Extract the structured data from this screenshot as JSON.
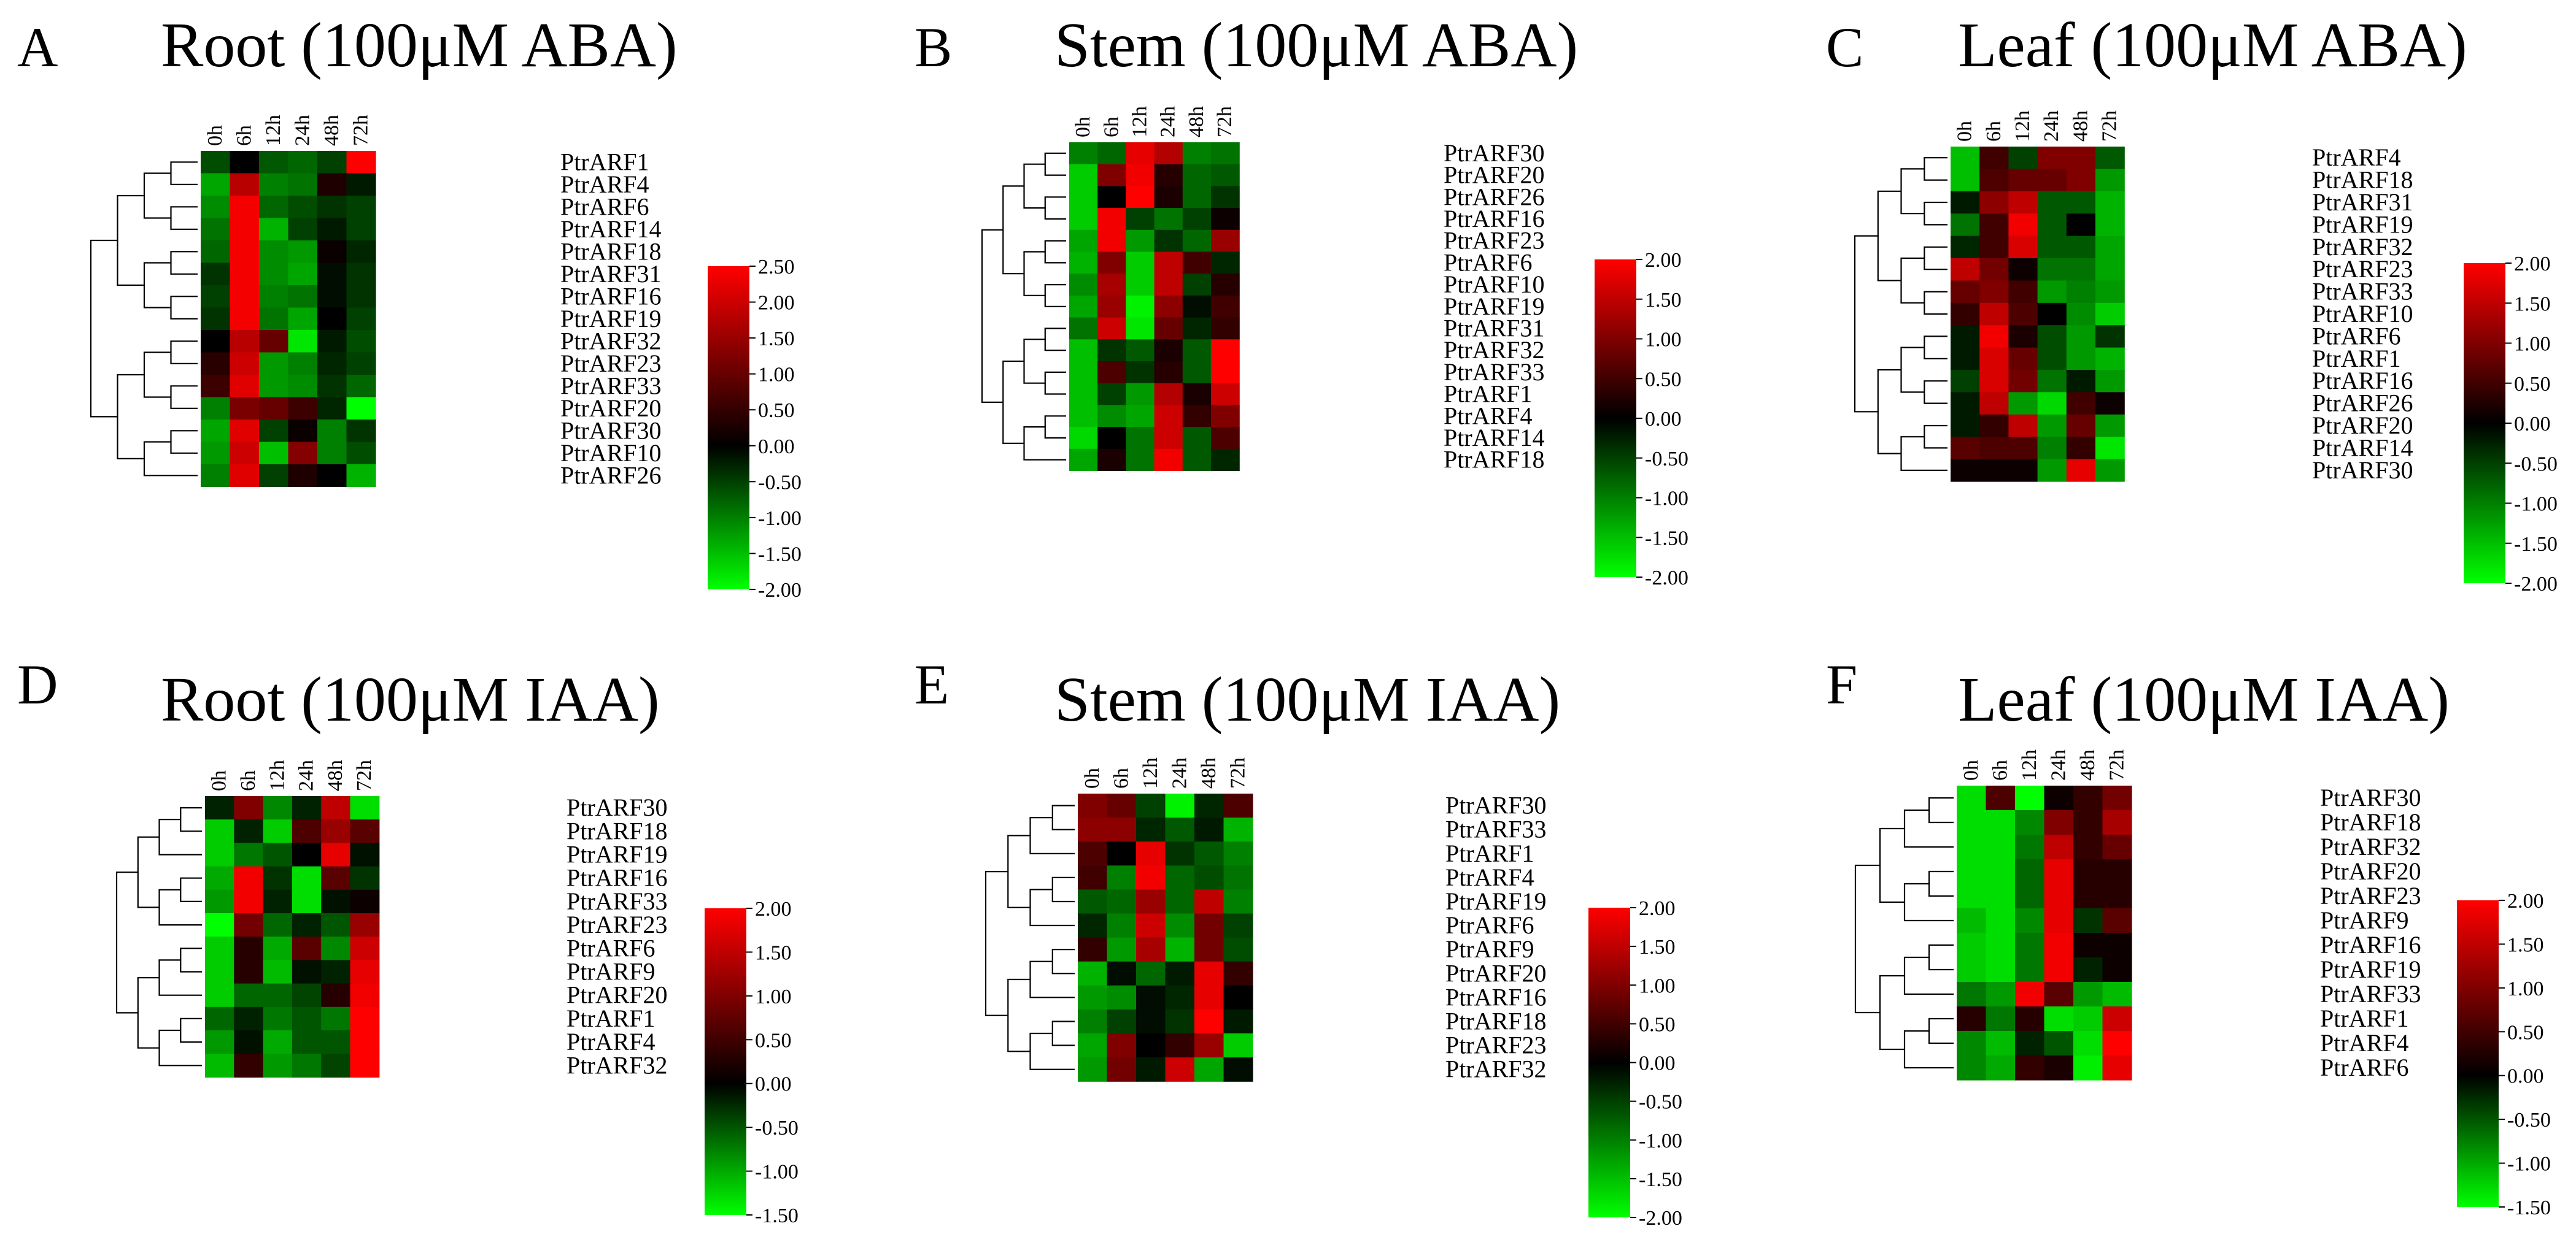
{
  "colors": {
    "low": "#00ff00",
    "mid": "#000000",
    "high": "#ff0000"
  },
  "chart_data": [
    {
      "type": "heatmap",
      "panel": "A",
      "title": "Root (100μM ABA)",
      "columns": [
        "0h",
        "6h",
        "12h",
        "24h",
        "48h",
        "72h"
      ],
      "rows": [
        "PtrARF1",
        "PtrARF4",
        "PtrARF6",
        "PtrARF14",
        "PtrARF18",
        "PtrARF31",
        "PtrARF16",
        "PtrARF19",
        "PtrARF32",
        "PtrARF23",
        "PtrARF33",
        "PtrARF20",
        "PtrARF30",
        "PtrARF10",
        "PtrARF26"
      ],
      "values": [
        [
          -0.6,
          0.0,
          -0.7,
          -0.8,
          -0.5,
          2.5
        ],
        [
          -1.3,
          1.8,
          -1.0,
          -0.9,
          0.3,
          -0.2
        ],
        [
          -1.1,
          2.4,
          -0.8,
          -0.6,
          -0.4,
          -0.5
        ],
        [
          -0.9,
          2.4,
          -1.4,
          -0.5,
          -0.2,
          -0.5
        ],
        [
          -0.8,
          2.4,
          -1.1,
          -1.2,
          0.1,
          -0.3
        ],
        [
          -0.4,
          2.4,
          -1.1,
          -1.3,
          -0.1,
          -0.4
        ],
        [
          -0.5,
          2.4,
          -1.0,
          -0.9,
          -0.1,
          -0.4
        ],
        [
          -0.4,
          2.4,
          -0.9,
          -1.3,
          0.0,
          -0.5
        ],
        [
          0.0,
          1.8,
          1.0,
          -1.8,
          -0.2,
          -0.6
        ],
        [
          0.4,
          2.0,
          -1.2,
          -1.0,
          -0.3,
          -0.5
        ],
        [
          0.6,
          2.2,
          -1.2,
          -1.1,
          -0.4,
          -0.8
        ],
        [
          -1.0,
          1.2,
          1.0,
          0.6,
          -0.3,
          -2.0
        ],
        [
          -1.3,
          2.2,
          -0.5,
          0.1,
          -1.0,
          -0.4
        ],
        [
          -1.2,
          2.0,
          -1.5,
          1.3,
          -1.0,
          -0.6
        ],
        [
          -1.0,
          2.2,
          -0.5,
          0.3,
          0.0,
          -1.4
        ]
      ],
      "scale": {
        "min": -2.0,
        "max": 2.5,
        "ticks": [
          "2.50",
          "2.00",
          "1.50",
          "1.00",
          "0.50",
          "0.00",
          "-0.50",
          "-1.00",
          "-1.50",
          "-2.00"
        ]
      }
    },
    {
      "type": "heatmap",
      "panel": "B",
      "title": "Stem (100μM ABA)",
      "columns": [
        "0h",
        "6h",
        "12h",
        "24h",
        "48h",
        "72h"
      ],
      "rows": [
        "PtrARF30",
        "PtrARF20",
        "PtrARF26",
        "PtrARF16",
        "PtrARF23",
        "PtrARF6",
        "PtrARF10",
        "PtrARF19",
        "PtrARF31",
        "PtrARF32",
        "PtrARF33",
        "PtrARF1",
        "PtrARF4",
        "PtrARF14",
        "PtrARF18"
      ],
      "values": [
        [
          -1.0,
          -0.8,
          1.8,
          1.4,
          -1.0,
          -0.9
        ],
        [
          -1.6,
          1.0,
          1.9,
          0.3,
          -0.8,
          -0.7
        ],
        [
          -1.6,
          0.0,
          2.0,
          0.2,
          -0.8,
          -0.4
        ],
        [
          -1.6,
          1.9,
          -0.5,
          -0.9,
          -0.5,
          0.1
        ],
        [
          -1.3,
          1.9,
          -1.2,
          -0.4,
          -0.8,
          1.2
        ],
        [
          -1.4,
          1.0,
          -1.6,
          1.5,
          0.5,
          -0.3
        ],
        [
          -1.1,
          1.3,
          -1.6,
          1.5,
          -0.5,
          0.3
        ],
        [
          -1.3,
          1.2,
          -1.9,
          1.1,
          -0.1,
          0.5
        ],
        [
          -0.9,
          1.6,
          -1.8,
          0.8,
          -0.3,
          0.4
        ],
        [
          -1.5,
          -0.4,
          -0.7,
          0.2,
          -0.7,
          2.0
        ],
        [
          -1.5,
          0.6,
          -0.4,
          0.3,
          -0.7,
          2.0
        ],
        [
          -1.5,
          -0.5,
          -1.2,
          1.4,
          0.2,
          1.6
        ],
        [
          -1.5,
          -1.1,
          -1.3,
          1.6,
          0.4,
          1.0
        ],
        [
          -1.7,
          0.0,
          -0.9,
          1.6,
          -0.7,
          0.6
        ],
        [
          -1.3,
          0.2,
          -0.9,
          1.9,
          -0.7,
          -0.3
        ]
      ],
      "scale": {
        "min": -2.0,
        "max": 2.0,
        "ticks": [
          "2.00",
          "1.50",
          "1.00",
          "0.50",
          "0.00",
          "-0.50",
          "-1.00",
          "-1.50",
          "-2.00"
        ]
      }
    },
    {
      "type": "heatmap",
      "panel": "C",
      "title": "Leaf (100μM ABA)",
      "columns": [
        "0h",
        "6h",
        "12h",
        "24h",
        "48h",
        "72h"
      ],
      "rows": [
        "PtrARF4",
        "PtrARF18",
        "PtrARF31",
        "PtrARF19",
        "PtrARF32",
        "PtrARF23",
        "PtrARF33",
        "PtrARF10",
        "PtrARF6",
        "PtrARF1",
        "PtrARF16",
        "PtrARF26",
        "PtrARF20",
        "PtrARF14",
        "PtrARF30"
      ],
      "values": [
        [
          -1.5,
          0.5,
          -0.5,
          1.0,
          1.0,
          -0.7
        ],
        [
          -1.5,
          0.6,
          0.8,
          0.8,
          1.0,
          -1.2
        ],
        [
          -0.2,
          1.1,
          1.5,
          -0.7,
          -0.7,
          -1.4
        ],
        [
          -0.9,
          0.5,
          1.9,
          -0.7,
          0.0,
          -1.4
        ],
        [
          -0.3,
          0.5,
          1.7,
          -0.7,
          -0.7,
          -1.3
        ],
        [
          1.5,
          0.9,
          0.1,
          -0.9,
          -0.9,
          -1.3
        ],
        [
          0.8,
          1.0,
          0.5,
          -1.2,
          -1.0,
          -1.2
        ],
        [
          0.4,
          1.5,
          0.6,
          0.0,
          -1.1,
          -1.6
        ],
        [
          -0.2,
          1.9,
          0.2,
          -0.6,
          -1.2,
          -0.4
        ],
        [
          -0.2,
          1.7,
          0.8,
          -0.6,
          -1.2,
          -1.4
        ],
        [
          -0.5,
          1.7,
          0.9,
          -0.9,
          -0.2,
          -1.2
        ],
        [
          -0.2,
          1.5,
          -1.2,
          -1.7,
          0.5,
          0.1
        ],
        [
          -0.2,
          0.4,
          1.5,
          -1.2,
          0.8,
          -1.2
        ],
        [
          0.7,
          0.6,
          0.6,
          -1.0,
          0.4,
          -1.8
        ],
        [
          0.1,
          0.1,
          0.1,
          -1.2,
          1.8,
          -1.2
        ]
      ],
      "scale": {
        "min": -2.0,
        "max": 2.0,
        "ticks": [
          "2.00",
          "1.50",
          "1.00",
          "0.50",
          "0.00",
          "-0.50",
          "-1.00",
          "-1.50",
          "-2.00"
        ]
      }
    },
    {
      "type": "heatmap",
      "panel": "D",
      "title": "Root (100μM IAA)",
      "columns": [
        "0h",
        "6h",
        "12h",
        "24h",
        "48h",
        "72h"
      ],
      "rows": [
        "PtrARF30",
        "PtrARF18",
        "PtrARF19",
        "PtrARF16",
        "PtrARF33",
        "PtrARF23",
        "PtrARF6",
        "PtrARF9",
        "PtrARF20",
        "PtrARF1",
        "PtrARF4",
        "PtrARF32"
      ],
      "values": [
        [
          -0.2,
          1.0,
          -0.8,
          -0.2,
          1.5,
          -1.3
        ],
        [
          -1.2,
          -0.2,
          -1.2,
          0.6,
          1.2,
          0.7
        ],
        [
          -1.2,
          -0.7,
          -0.5,
          0.0,
          1.8,
          -0.1
        ],
        [
          -1.0,
          1.9,
          -0.3,
          -1.3,
          0.7,
          -0.3
        ],
        [
          -0.9,
          1.9,
          -0.2,
          -1.3,
          -0.1,
          0.1
        ],
        [
          -1.5,
          0.9,
          -0.6,
          -0.2,
          -0.5,
          1.2
        ],
        [
          -1.2,
          0.3,
          -1.0,
          0.7,
          -0.8,
          1.6
        ],
        [
          -1.2,
          0.3,
          -1.1,
          -0.1,
          -0.2,
          1.8
        ],
        [
          -1.2,
          -0.6,
          -0.6,
          -0.4,
          0.3,
          1.9
        ],
        [
          -0.6,
          -0.2,
          -0.7,
          -0.5,
          -0.7,
          2.0
        ],
        [
          -0.9,
          -0.1,
          -1.0,
          -0.5,
          -0.5,
          2.0
        ],
        [
          -1.1,
          0.4,
          -0.9,
          -0.7,
          -0.4,
          2.0
        ]
      ],
      "scale": {
        "min": -1.5,
        "max": 2.0,
        "ticks": [
          "2.00",
          "1.50",
          "1.00",
          "0.50",
          "0.00",
          "-0.50",
          "-1.00",
          "-1.50"
        ]
      }
    },
    {
      "type": "heatmap",
      "panel": "E",
      "title": "Stem (100μM IAA)",
      "columns": [
        "0h",
        "6h",
        "12h",
        "24h",
        "48h",
        "72h"
      ],
      "rows": [
        "PtrARF30",
        "PtrARF33",
        "PtrARF1",
        "PtrARF4",
        "PtrARF19",
        "PtrARF6",
        "PtrARF9",
        "PtrARF20",
        "PtrARF16",
        "PtrARF18",
        "PtrARF23",
        "PtrARF32"
      ],
      "values": [
        [
          1.0,
          0.8,
          -0.5,
          -1.9,
          -0.3,
          0.6
        ],
        [
          1.1,
          1.1,
          -0.3,
          -0.7,
          -0.2,
          -1.4
        ],
        [
          0.6,
          0.0,
          1.8,
          -0.4,
          -0.7,
          -1.0
        ],
        [
          0.5,
          -1.0,
          1.9,
          -0.8,
          -0.6,
          -0.9
        ],
        [
          -0.7,
          -0.8,
          1.2,
          -0.8,
          1.5,
          -1.0
        ],
        [
          -0.3,
          -1.0,
          1.6,
          -1.1,
          0.9,
          -0.5
        ],
        [
          0.4,
          -1.2,
          1.3,
          -1.4,
          0.9,
          -0.6
        ],
        [
          -1.4,
          -0.1,
          -0.8,
          -0.2,
          1.8,
          0.4
        ],
        [
          -1.2,
          -1.1,
          -0.1,
          -0.3,
          1.8,
          0.0
        ],
        [
          -1.0,
          -0.5,
          -0.1,
          -0.4,
          2.0,
          -0.2
        ],
        [
          -1.3,
          1.0,
          0.0,
          0.4,
          1.2,
          -1.6
        ],
        [
          -1.2,
          0.9,
          -0.2,
          1.6,
          -1.3,
          -0.1
        ]
      ],
      "scale": {
        "min": -2.0,
        "max": 2.0,
        "ticks": [
          "2.00",
          "1.50",
          "1.00",
          "0.50",
          "0.00",
          "-0.50",
          "-1.00",
          "-1.50",
          "-2.00"
        ]
      }
    },
    {
      "type": "heatmap",
      "panel": "F",
      "title": "Leaf (100μM IAA)",
      "columns": [
        "0h",
        "6h",
        "12h",
        "24h",
        "48h",
        "72h"
      ],
      "rows": [
        "PtrARF30",
        "PtrARF18",
        "PtrARF32",
        "PtrARF20",
        "PtrARF23",
        "PtrARF9",
        "PtrARF16",
        "PtrARF19",
        "PtrARF33",
        "PtrARF1",
        "PtrARF4",
        "PtrARF6"
      ],
      "values": [
        [
          -1.3,
          0.6,
          -1.5,
          0.1,
          0.4,
          0.9
        ],
        [
          -1.3,
          -1.3,
          -0.8,
          1.0,
          0.4,
          1.3
        ],
        [
          -1.3,
          -1.3,
          -0.7,
          1.5,
          0.4,
          0.8
        ],
        [
          -1.3,
          -1.3,
          -0.6,
          1.8,
          0.3,
          0.3
        ],
        [
          -1.3,
          -1.3,
          -0.6,
          1.8,
          0.3,
          0.3
        ],
        [
          -1.1,
          -1.3,
          -0.8,
          1.8,
          -0.3,
          0.7
        ],
        [
          -1.2,
          -1.3,
          -0.7,
          1.9,
          0.1,
          0.1
        ],
        [
          -1.2,
          -1.3,
          -0.7,
          1.9,
          -0.2,
          0.1
        ],
        [
          -0.7,
          -0.9,
          1.9,
          0.7,
          -0.9,
          -1.1
        ],
        [
          0.3,
          -0.7,
          0.3,
          -1.3,
          -1.2,
          1.6
        ],
        [
          -0.8,
          -1.1,
          -0.2,
          -0.5,
          -1.3,
          2.0
        ],
        [
          -0.8,
          -1.0,
          0.4,
          0.2,
          -1.4,
          1.8
        ]
      ],
      "scale": {
        "min": -1.5,
        "max": 2.0,
        "ticks": [
          "2.00",
          "1.50",
          "1.00",
          "0.50",
          "0.00",
          "-0.50",
          "-1.00",
          "-1.50"
        ]
      }
    }
  ]
}
